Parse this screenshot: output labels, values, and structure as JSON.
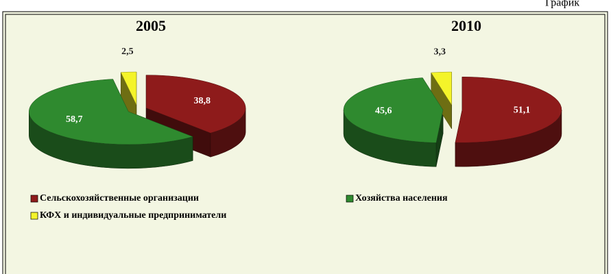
{
  "caption": "График",
  "chart_data": [
    {
      "type": "pie",
      "title": "2005",
      "categories": [
        "Сельскохозяйственные организации",
        "Хозяйства населения",
        "КФХ и индивидуальные предприниматели"
      ],
      "values": [
        38.8,
        58.7,
        2.5
      ],
      "value_labels": [
        "38,8",
        "58,7",
        "2,5"
      ],
      "colors": [
        "#8e1b1b",
        "#2f8a2f",
        "#f4f42a"
      ]
    },
    {
      "type": "pie",
      "title": "2010",
      "categories": [
        "Сельскохозяйственные организации",
        "Хозяйства населения",
        "КФХ и индивидуальные предприниматели"
      ],
      "values": [
        51.1,
        45.6,
        3.3
      ],
      "value_labels": [
        "51,1",
        "45,6",
        "3,3"
      ],
      "colors": [
        "#8e1b1b",
        "#2f8a2f",
        "#f4f42a"
      ]
    }
  ]
}
